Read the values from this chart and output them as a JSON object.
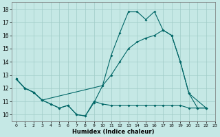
{
  "xlabel": "Humidex (Indice chaleur)",
  "xlim": [
    -0.5,
    23
  ],
  "ylim": [
    9.5,
    18.5
  ],
  "yticks": [
    10,
    11,
    12,
    13,
    14,
    15,
    16,
    17,
    18
  ],
  "xticks": [
    0,
    1,
    2,
    3,
    4,
    5,
    6,
    7,
    8,
    9,
    10,
    11,
    12,
    13,
    14,
    15,
    16,
    17,
    18,
    19,
    20,
    21,
    22,
    23
  ],
  "background_color": "#c5e8e5",
  "grid_color": "#a0ccc8",
  "line_color": "#006666",
  "line1_x": [
    0,
    1,
    2,
    3,
    4,
    5,
    6,
    7,
    8,
    9,
    10,
    11,
    12,
    13,
    14,
    15,
    16,
    17,
    18,
    19,
    20,
    21,
    22
  ],
  "line1_y": [
    12.7,
    12.0,
    11.7,
    11.1,
    10.8,
    10.5,
    10.7,
    10.0,
    9.9,
    10.9,
    12.2,
    14.5,
    16.2,
    17.8,
    17.8,
    17.2,
    17.8,
    16.4,
    16.0,
    14.0,
    11.6,
    10.5,
    10.5
  ],
  "line2_x": [
    0,
    1,
    2,
    3,
    10,
    11,
    12,
    13,
    14,
    15,
    16,
    17,
    18,
    19,
    20,
    22
  ],
  "line2_y": [
    12.7,
    12.0,
    11.7,
    11.1,
    12.2,
    13.0,
    14.0,
    15.0,
    15.5,
    15.8,
    16.0,
    16.4,
    16.0,
    14.0,
    11.6,
    10.5
  ],
  "line3_x": [
    0,
    1,
    2,
    3,
    4,
    5,
    6,
    7,
    8,
    9,
    10,
    11,
    12,
    13,
    14,
    15,
    16,
    17,
    18,
    19,
    20,
    21,
    22
  ],
  "line3_y": [
    12.7,
    12.0,
    11.7,
    11.1,
    10.8,
    10.5,
    10.7,
    10.0,
    9.9,
    11.0,
    10.8,
    10.7,
    10.7,
    10.7,
    10.7,
    10.7,
    10.7,
    10.7,
    10.7,
    10.7,
    10.5,
    10.5,
    10.5
  ]
}
